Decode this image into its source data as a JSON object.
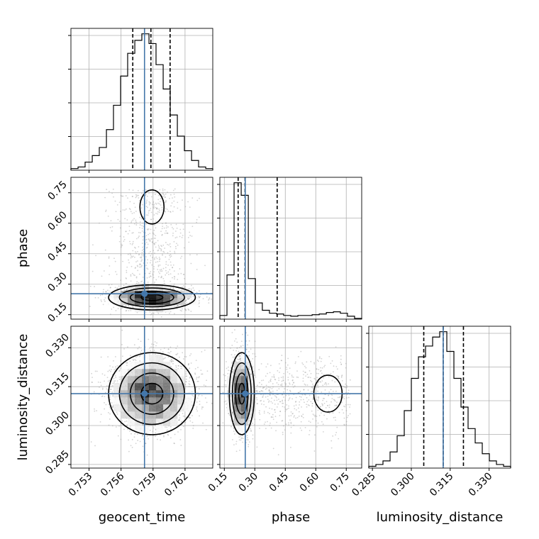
{
  "chart_data": {
    "type": "corner",
    "parameters": [
      "geocent_time",
      "phase",
      "luminosity_distance"
    ],
    "axis_labels": {
      "geocent_time": "geocent_time",
      "phase": "phase",
      "luminosity_distance": "luminosity_distance"
    },
    "ranges": {
      "geocent_time": [
        0.7513,
        0.7646
      ],
      "phase": [
        0.128,
        0.826
      ],
      "luminosity_distance": [
        0.2836,
        0.3383
      ]
    },
    "ticks": {
      "geocent_time": [
        0.753,
        0.756,
        0.759,
        0.762
      ],
      "phase": [
        0.15,
        0.3,
        0.45,
        0.6,
        0.75
      ],
      "luminosity_distance": [
        0.285,
        0.3,
        0.315,
        0.33
      ]
    },
    "tick_labels": {
      "geocent_time": [
        "0.753",
        "0.756",
        "0.759",
        "0.762"
      ],
      "phase": [
        "0.15",
        "0.30",
        "0.45",
        "0.60",
        "0.75"
      ],
      "luminosity_distance": [
        "0.285",
        "0.300",
        "0.315",
        "0.330"
      ]
    },
    "truths": {
      "geocent_time": 0.7582,
      "phase": 0.253,
      "luminosity_distance": 0.3123
    },
    "quantiles": {
      "geocent_time": [
        0.7571,
        0.7588,
        0.7606
      ],
      "phase": [
        0.218,
        0.252,
        0.41
      ],
      "luminosity_distance": [
        0.3048,
        0.3123,
        0.3201
      ]
    },
    "histograms": {
      "geocent_time": {
        "edges": [
          0.7513,
          0.75197,
          0.75263,
          0.7533,
          0.75396,
          0.75463,
          0.75529,
          0.75596,
          0.75662,
          0.75729,
          0.75795,
          0.75862,
          0.75928,
          0.75995,
          0.76061,
          0.76128,
          0.76194,
          0.76261,
          0.76327,
          0.76394,
          0.7646
        ],
        "counts": [
          1,
          2,
          5,
          9,
          14,
          25,
          40,
          58,
          72,
          80,
          84,
          78,
          65,
          50,
          34,
          21,
          12,
          6,
          2,
          1
        ]
      },
      "phase": {
        "edges": [
          0.128,
          0.163,
          0.198,
          0.233,
          0.268,
          0.303,
          0.337,
          0.372,
          0.407,
          0.442,
          0.477,
          0.512,
          0.547,
          0.582,
          0.617,
          0.652,
          0.687,
          0.721,
          0.756,
          0.791,
          0.826
        ],
        "counts": [
          5,
          60,
          185,
          168,
          55,
          22,
          12,
          8,
          7,
          5,
          4,
          5,
          5,
          6,
          7,
          9,
          10,
          8,
          4,
          1
        ]
      },
      "luminosity_distance": {
        "edges": [
          0.2836,
          0.28634,
          0.28907,
          0.29181,
          0.29454,
          0.29728,
          0.30001,
          0.30275,
          0.30548,
          0.30822,
          0.31095,
          0.31369,
          0.31642,
          0.31916,
          0.32189,
          0.32463,
          0.32736,
          0.3301,
          0.33283,
          0.33557,
          0.3383
        ],
        "counts": [
          1,
          2,
          4,
          9,
          18,
          32,
          50,
          62,
          68,
          73,
          76,
          65,
          50,
          34,
          22,
          14,
          8,
          4,
          2,
          1
        ]
      }
    },
    "contour_levels": [
      "0.5-sigma",
      "1-sigma",
      "1.5-sigma",
      "2-sigma"
    ],
    "colors": {
      "truth": "#4477aa",
      "histogram": "#000000",
      "quantile": "#000000",
      "grid": "#b0b0b0",
      "samples": "#9e9e9e"
    },
    "grid": true
  }
}
